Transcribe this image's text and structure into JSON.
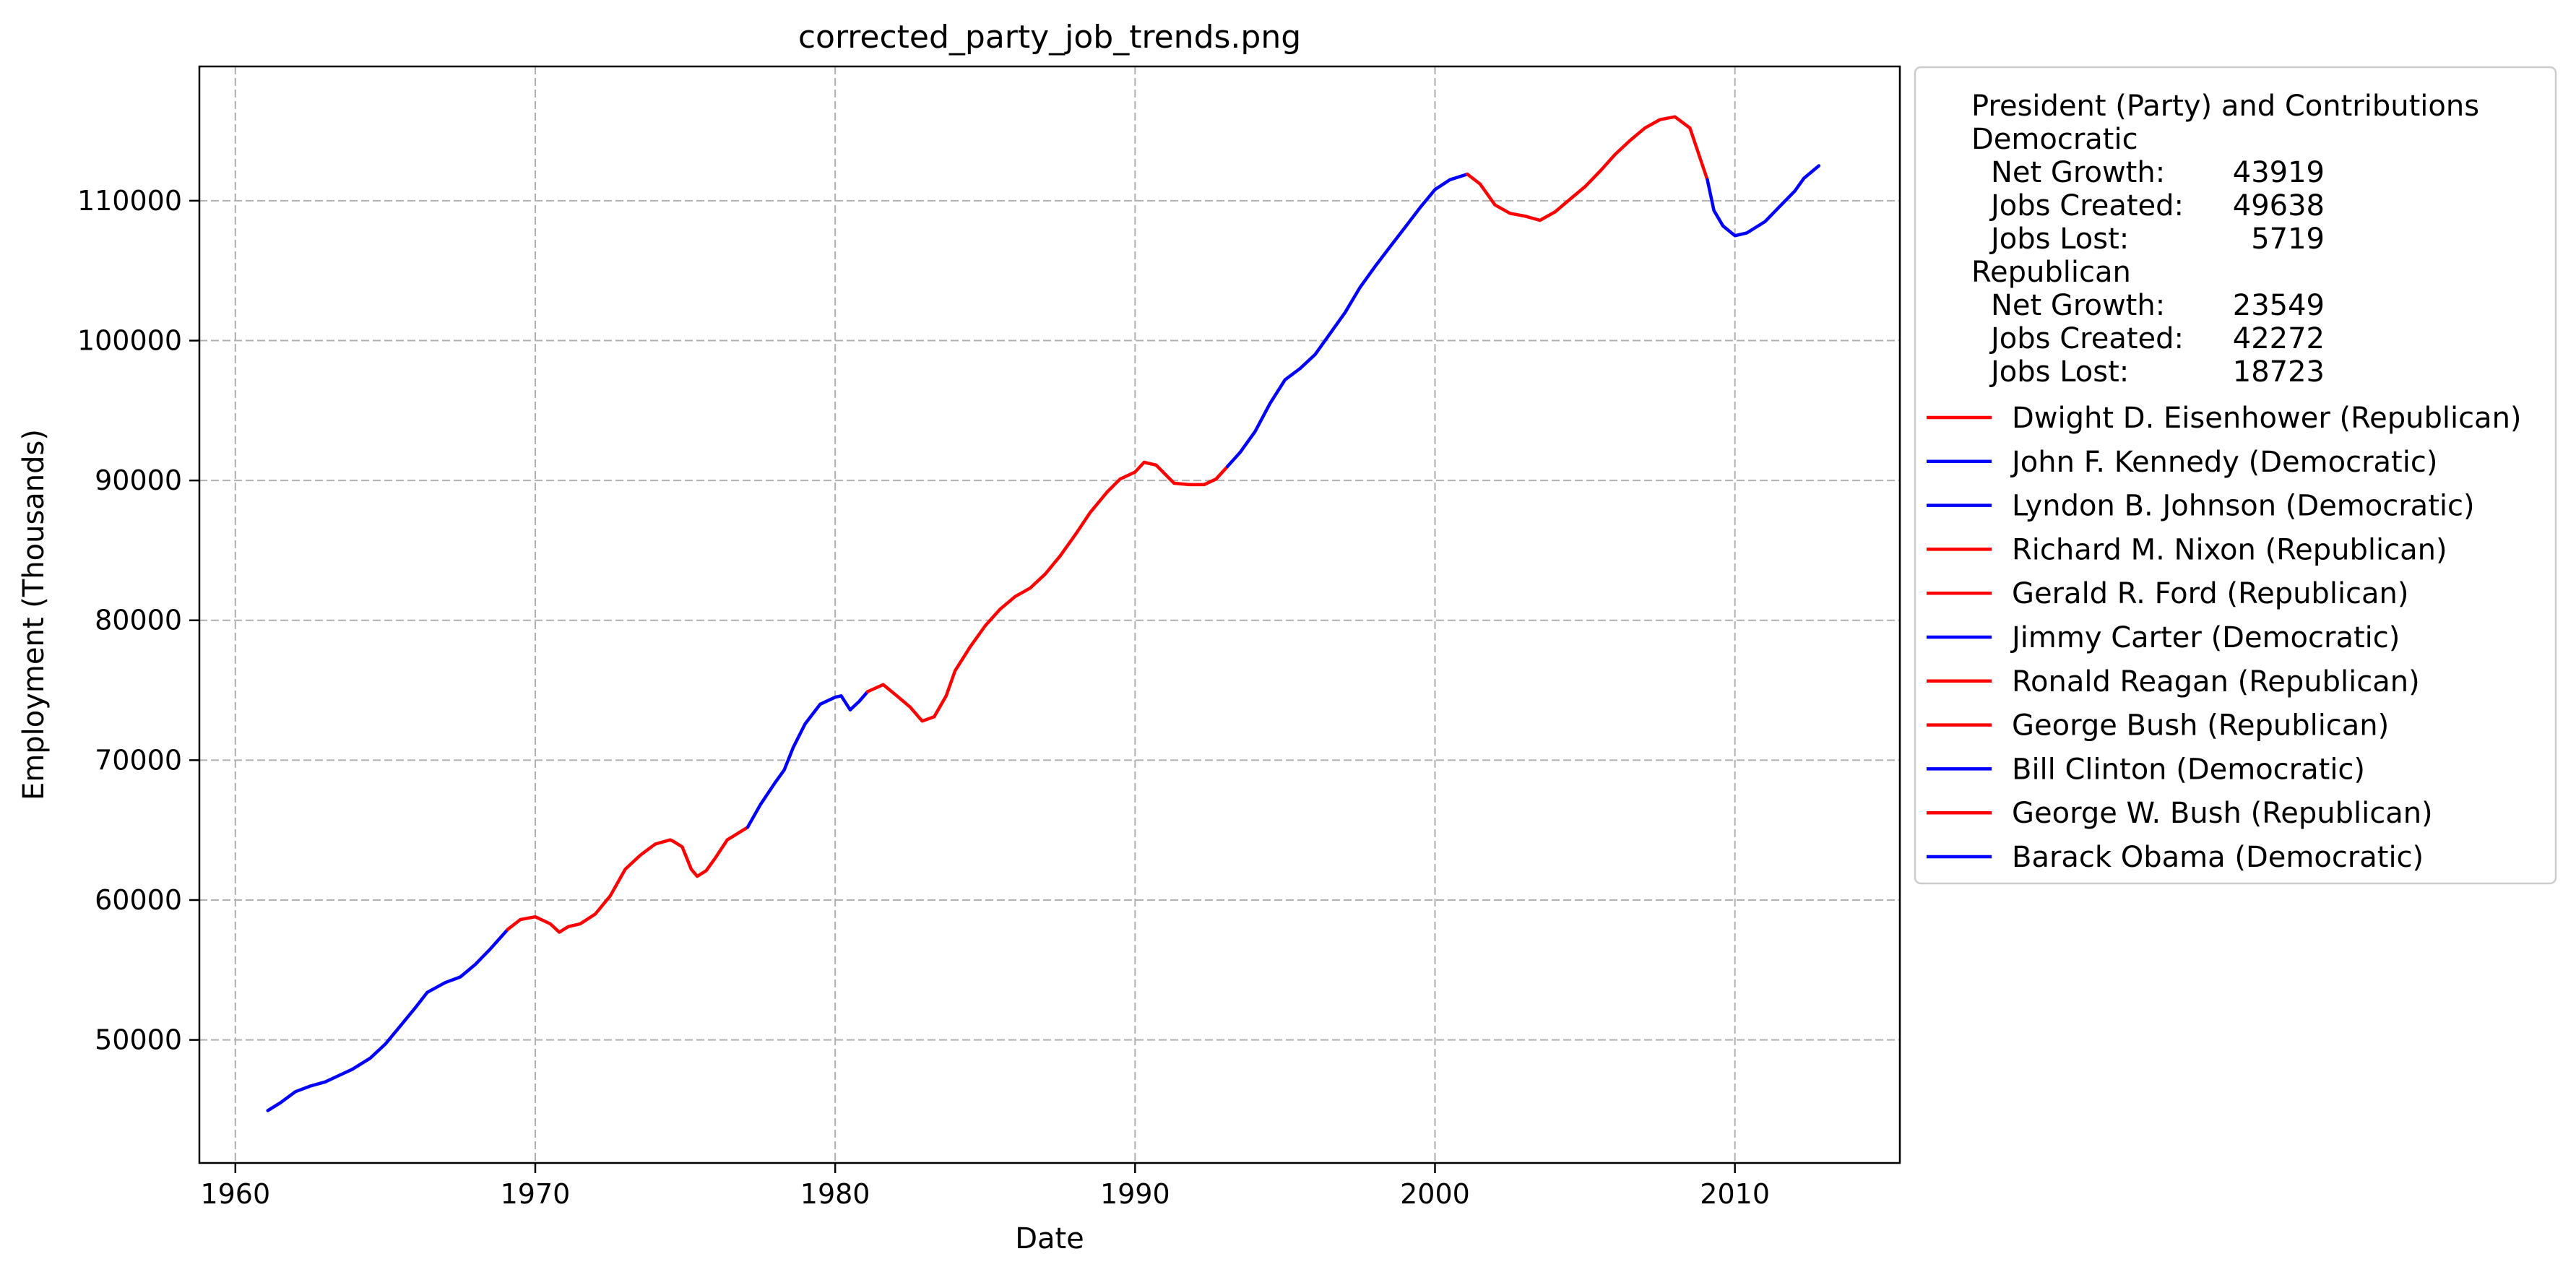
{
  "chart_data": {
    "type": "line",
    "title": "corrected_party_job_trends.png",
    "xlabel": "Date",
    "ylabel": "Employment (Thousands)",
    "xlim": [
      1958.8,
      2015.5
    ],
    "ylim": [
      41200,
      119600
    ],
    "x_ticks": [
      "1960",
      "1970",
      "1980",
      "1990",
      "2000",
      "2010"
    ],
    "y_ticks": [
      "50000",
      "60000",
      "70000",
      "80000",
      "90000",
      "100000",
      "110000"
    ],
    "grid": true,
    "legend_position": "outside-right",
    "colors": {
      "Republican": "#ff0000",
      "Democratic": "#0000ff"
    },
    "summary": {
      "heading": "President (Party) and Contributions",
      "lines": [
        {
          "text": "Democratic",
          "indent": 0
        },
        {
          "label": "Net Growth:",
          "value": "43919",
          "indent": 1
        },
        {
          "label": "Jobs Created:",
          "value": "49638",
          "indent": 1
        },
        {
          "label": "Jobs Lost:",
          "value": "5719",
          "indent": 1
        },
        {
          "text": "Republican",
          "indent": 0
        },
        {
          "label": "Net Growth:",
          "value": "23549",
          "indent": 1
        },
        {
          "label": "Jobs Created:",
          "value": "42272",
          "indent": 1
        },
        {
          "label": "Jobs Lost:",
          "value": "18723",
          "indent": 1
        }
      ]
    },
    "series": [
      {
        "name": "Dwight D. Eisenhower (Republican)",
        "party": "Republican",
        "points": []
      },
      {
        "name": "John F. Kennedy (Democratic)",
        "party": "Democratic",
        "points": [
          [
            1961.08,
            44950
          ],
          [
            1961.5,
            45500
          ],
          [
            1962,
            46300
          ],
          [
            1962.5,
            46700
          ],
          [
            1963,
            47000
          ],
          [
            1963.5,
            47500
          ],
          [
            1963.9,
            47900
          ]
        ]
      },
      {
        "name": "Lyndon B. Johnson (Democratic)",
        "party": "Democratic",
        "points": [
          [
            1963.9,
            47900
          ],
          [
            1964.5,
            48700
          ],
          [
            1965,
            49700
          ],
          [
            1965.5,
            51000
          ],
          [
            1966,
            52300
          ],
          [
            1966.4,
            53400
          ],
          [
            1967,
            54100
          ],
          [
            1967.5,
            54500
          ],
          [
            1968,
            55400
          ],
          [
            1968.5,
            56500
          ],
          [
            1969.08,
            57900
          ]
        ]
      },
      {
        "name": "Richard M. Nixon (Republican)",
        "party": "Republican",
        "points": [
          [
            1969.08,
            57900
          ],
          [
            1969.5,
            58600
          ],
          [
            1970,
            58800
          ],
          [
            1970.5,
            58300
          ],
          [
            1970.8,
            57700
          ],
          [
            1971.1,
            58100
          ],
          [
            1971.5,
            58300
          ],
          [
            1972,
            59000
          ],
          [
            1972.5,
            60300
          ],
          [
            1973,
            62200
          ],
          [
            1973.5,
            63200
          ],
          [
            1974,
            64000
          ],
          [
            1974.5,
            64300
          ],
          [
            1974.6,
            64200
          ]
        ]
      },
      {
        "name": "Gerald R. Ford (Republican)",
        "party": "Republican",
        "points": [
          [
            1974.6,
            64200
          ],
          [
            1974.9,
            63800
          ],
          [
            1975.2,
            62200
          ],
          [
            1975.4,
            61700
          ],
          [
            1975.7,
            62100
          ],
          [
            1976,
            63000
          ],
          [
            1976.4,
            64300
          ],
          [
            1977.08,
            65200
          ]
        ]
      },
      {
        "name": "Jimmy Carter (Democratic)",
        "party": "Democratic",
        "points": [
          [
            1977.08,
            65200
          ],
          [
            1977.5,
            66800
          ],
          [
            1978,
            68400
          ],
          [
            1978.3,
            69300
          ],
          [
            1978.6,
            70900
          ],
          [
            1979,
            72600
          ],
          [
            1979.5,
            74000
          ],
          [
            1980,
            74500
          ],
          [
            1980.2,
            74600
          ],
          [
            1980.5,
            73600
          ],
          [
            1980.8,
            74200
          ],
          [
            1981.08,
            74900
          ]
        ]
      },
      {
        "name": "Ronald Reagan (Republican)",
        "party": "Republican",
        "points": [
          [
            1981.08,
            74900
          ],
          [
            1981.6,
            75400
          ],
          [
            1982,
            74700
          ],
          [
            1982.5,
            73800
          ],
          [
            1982.9,
            72800
          ],
          [
            1983.3,
            73100
          ],
          [
            1983.7,
            74600
          ],
          [
            1984,
            76400
          ],
          [
            1984.5,
            78100
          ],
          [
            1985,
            79600
          ],
          [
            1985.5,
            80800
          ],
          [
            1986,
            81700
          ],
          [
            1986.5,
            82300
          ],
          [
            1987,
            83300
          ],
          [
            1987.5,
            84600
          ],
          [
            1988,
            86100
          ],
          [
            1988.5,
            87700
          ],
          [
            1989.08,
            89200
          ]
        ]
      },
      {
        "name": "George Bush (Republican)",
        "party": "Republican",
        "points": [
          [
            1989.08,
            89200
          ],
          [
            1989.5,
            90100
          ],
          [
            1990,
            90600
          ],
          [
            1990.3,
            91300
          ],
          [
            1990.7,
            91100
          ],
          [
            1991.3,
            89800
          ],
          [
            1991.8,
            89700
          ],
          [
            1992.3,
            89700
          ],
          [
            1992.7,
            90100
          ],
          [
            1993.08,
            91000
          ]
        ]
      },
      {
        "name": "Bill Clinton (Democratic)",
        "party": "Democratic",
        "points": [
          [
            1993.08,
            91000
          ],
          [
            1993.5,
            92000
          ],
          [
            1994,
            93500
          ],
          [
            1994.5,
            95500
          ],
          [
            1995,
            97200
          ],
          [
            1995.5,
            98000
          ],
          [
            1996,
            99000
          ],
          [
            1996.5,
            100500
          ],
          [
            1997,
            102000
          ],
          [
            1997.5,
            103800
          ],
          [
            1998,
            105300
          ],
          [
            1998.5,
            106700
          ],
          [
            1999,
            108100
          ],
          [
            1999.5,
            109500
          ],
          [
            2000,
            110800
          ],
          [
            2000.5,
            111500
          ],
          [
            2001.08,
            111900
          ]
        ]
      },
      {
        "name": "George W. Bush (Republican)",
        "party": "Republican",
        "points": [
          [
            2001.08,
            111900
          ],
          [
            2001.5,
            111200
          ],
          [
            2002,
            109700
          ],
          [
            2002.5,
            109100
          ],
          [
            2003,
            108900
          ],
          [
            2003.5,
            108600
          ],
          [
            2004,
            109200
          ],
          [
            2004.5,
            110100
          ],
          [
            2005,
            111000
          ],
          [
            2005.5,
            112100
          ],
          [
            2006,
            113300
          ],
          [
            2006.5,
            114300
          ],
          [
            2007,
            115200
          ],
          [
            2007.5,
            115800
          ],
          [
            2008,
            116000
          ],
          [
            2008.5,
            115200
          ],
          [
            2009.08,
            111500
          ]
        ]
      },
      {
        "name": "Barack Obama (Democratic)",
        "party": "Democratic",
        "points": [
          [
            2009.08,
            111500
          ],
          [
            2009.3,
            109300
          ],
          [
            2009.6,
            108200
          ],
          [
            2010,
            107500
          ],
          [
            2010.4,
            107700
          ],
          [
            2011,
            108500
          ],
          [
            2011.5,
            109600
          ],
          [
            2012,
            110700
          ],
          [
            2012.3,
            111600
          ],
          [
            2012.8,
            112500
          ]
        ]
      }
    ]
  }
}
